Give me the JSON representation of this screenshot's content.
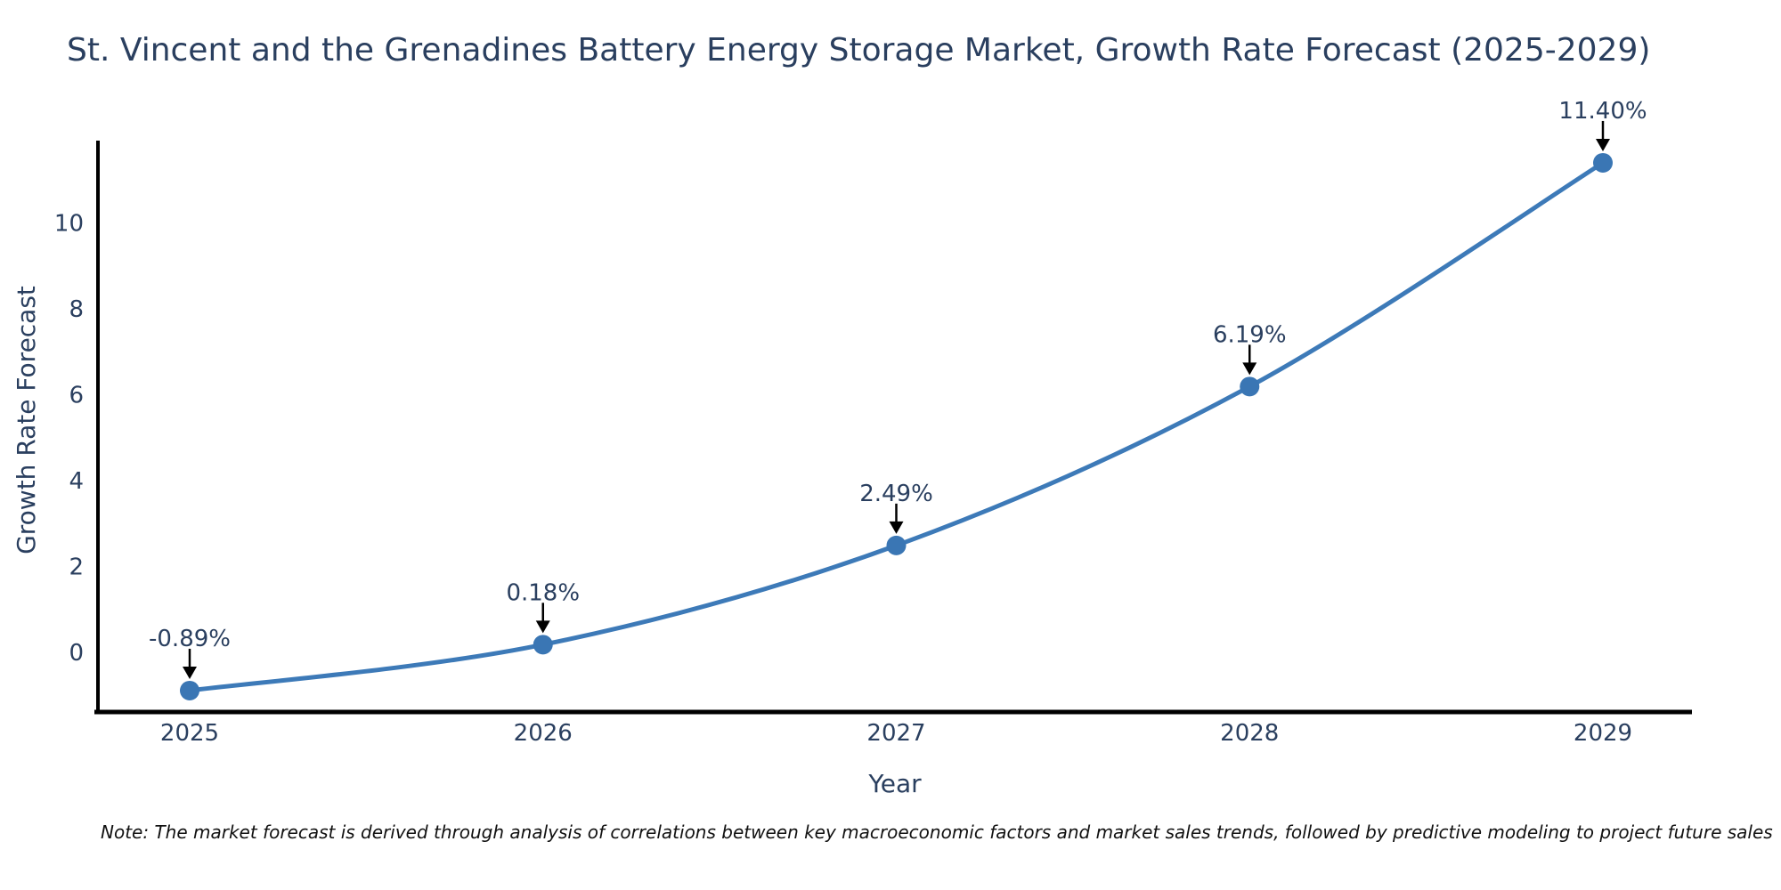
{
  "chart_data": {
    "type": "line",
    "title": "St. Vincent and the Grenadines Battery Energy Storage Market, Growth Rate Forecast (2025-2029)",
    "xlabel": "Year",
    "ylabel": "Growth Rate Forecast",
    "x": [
      2025,
      2026,
      2027,
      2028,
      2029
    ],
    "x_tick_labels": [
      "2025",
      "2026",
      "2027",
      "2028",
      "2029"
    ],
    "series": [
      {
        "name": "Growth Rate Forecast",
        "values": [
          -0.89,
          0.18,
          2.49,
          6.19,
          11.4
        ],
        "point_labels": [
          "-0.89%",
          "0.18%",
          "2.49%",
          "6.19%",
          "11.40%"
        ]
      }
    ],
    "y_ticks": [
      0,
      2,
      4,
      6,
      8,
      10
    ],
    "ylim": [
      -1.4,
      11.9
    ],
    "grid": false,
    "legend": "none",
    "line_color": "#3d7ab8",
    "marker_color": "#3a76b4",
    "axis_color": "#000000",
    "text_color": "#2a3f5f",
    "annotation_arrow_color": "#000000",
    "note": "Note: The market forecast is derived through analysis of correlations between key macroeconomic factors and market sales trends, followed by predictive modeling to project future sales"
  }
}
